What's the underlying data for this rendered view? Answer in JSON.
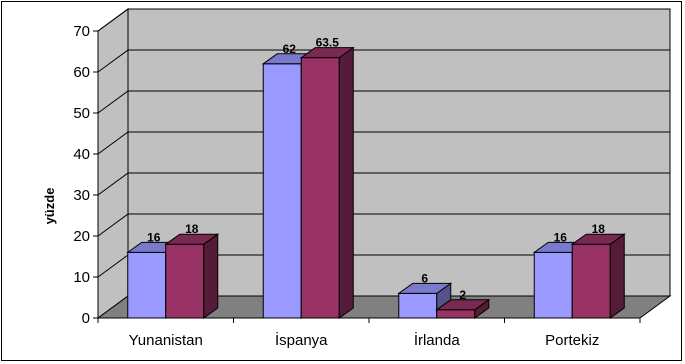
{
  "chart_data": {
    "type": "bar",
    "title": "",
    "xlabel": "",
    "ylabel": "yüzde",
    "ylim": [
      0,
      70
    ],
    "yticks": [
      0,
      10,
      20,
      30,
      40,
      50,
      60,
      70
    ],
    "categories": [
      "Yunanistan",
      "İspanya",
      "İrlanda",
      "Portekiz"
    ],
    "series": [
      {
        "values": [
          16,
          62,
          6,
          16
        ],
        "labels": [
          "16",
          "62",
          "6",
          "16"
        ]
      },
      {
        "values": [
          18,
          63.5,
          2,
          18
        ],
        "labels": [
          "18",
          "63.5",
          "2",
          "18"
        ]
      }
    ],
    "grid": true,
    "legend": "none",
    "colors": {
      "series": [
        "#9999ff",
        "#993366"
      ],
      "walls": "#c0c0c0",
      "floor": "#808080"
    }
  }
}
